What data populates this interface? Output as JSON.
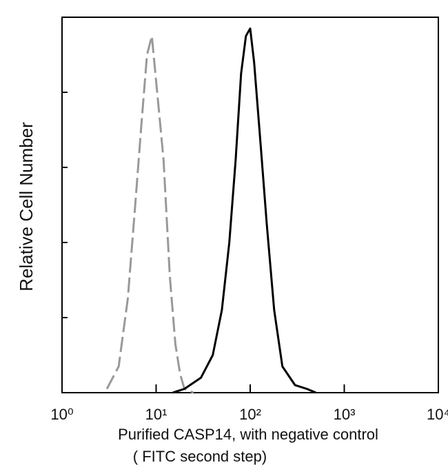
{
  "chart_data": {
    "type": "line",
    "xlabel": "Purified  CASP14,  with negative control",
    "xlabel2": "( FITC second step)",
    "ylabel": "Relative Cell Number",
    "xscale": "log",
    "xlim": [
      1,
      10000
    ],
    "xticks": [
      {
        "value": 1,
        "label": "10⁰"
      },
      {
        "value": 10,
        "label": "10¹"
      },
      {
        "value": 100,
        "label": "10²"
      },
      {
        "value": 1000,
        "label": "10³"
      },
      {
        "value": 10000,
        "label": "10⁴"
      }
    ],
    "ylim": [
      0,
      100
    ],
    "yticks": [
      0,
      20,
      40,
      60,
      80,
      100
    ],
    "series": [
      {
        "color": "#999999",
        "style": "dashed",
        "x": [
          3,
          4,
          5,
          6,
          7,
          8,
          9,
          10,
          11,
          12,
          14,
          16,
          18,
          20,
          25
        ],
        "values": [
          1,
          7,
          25,
          50,
          72,
          90,
          95,
          83,
          72,
          62,
          31,
          13,
          5,
          1,
          0
        ]
      },
      {
        "color": "#000000",
        "style": "solid",
        "x": [
          15,
          20,
          30,
          40,
          50,
          60,
          70,
          80,
          90,
          100,
          110,
          130,
          150,
          180,
          220,
          300,
          400,
          500
        ],
        "values": [
          0,
          1,
          4,
          10,
          22,
          40,
          62,
          85,
          95,
          97,
          88,
          65,
          45,
          22,
          7,
          2,
          1,
          0
        ]
      }
    ]
  }
}
